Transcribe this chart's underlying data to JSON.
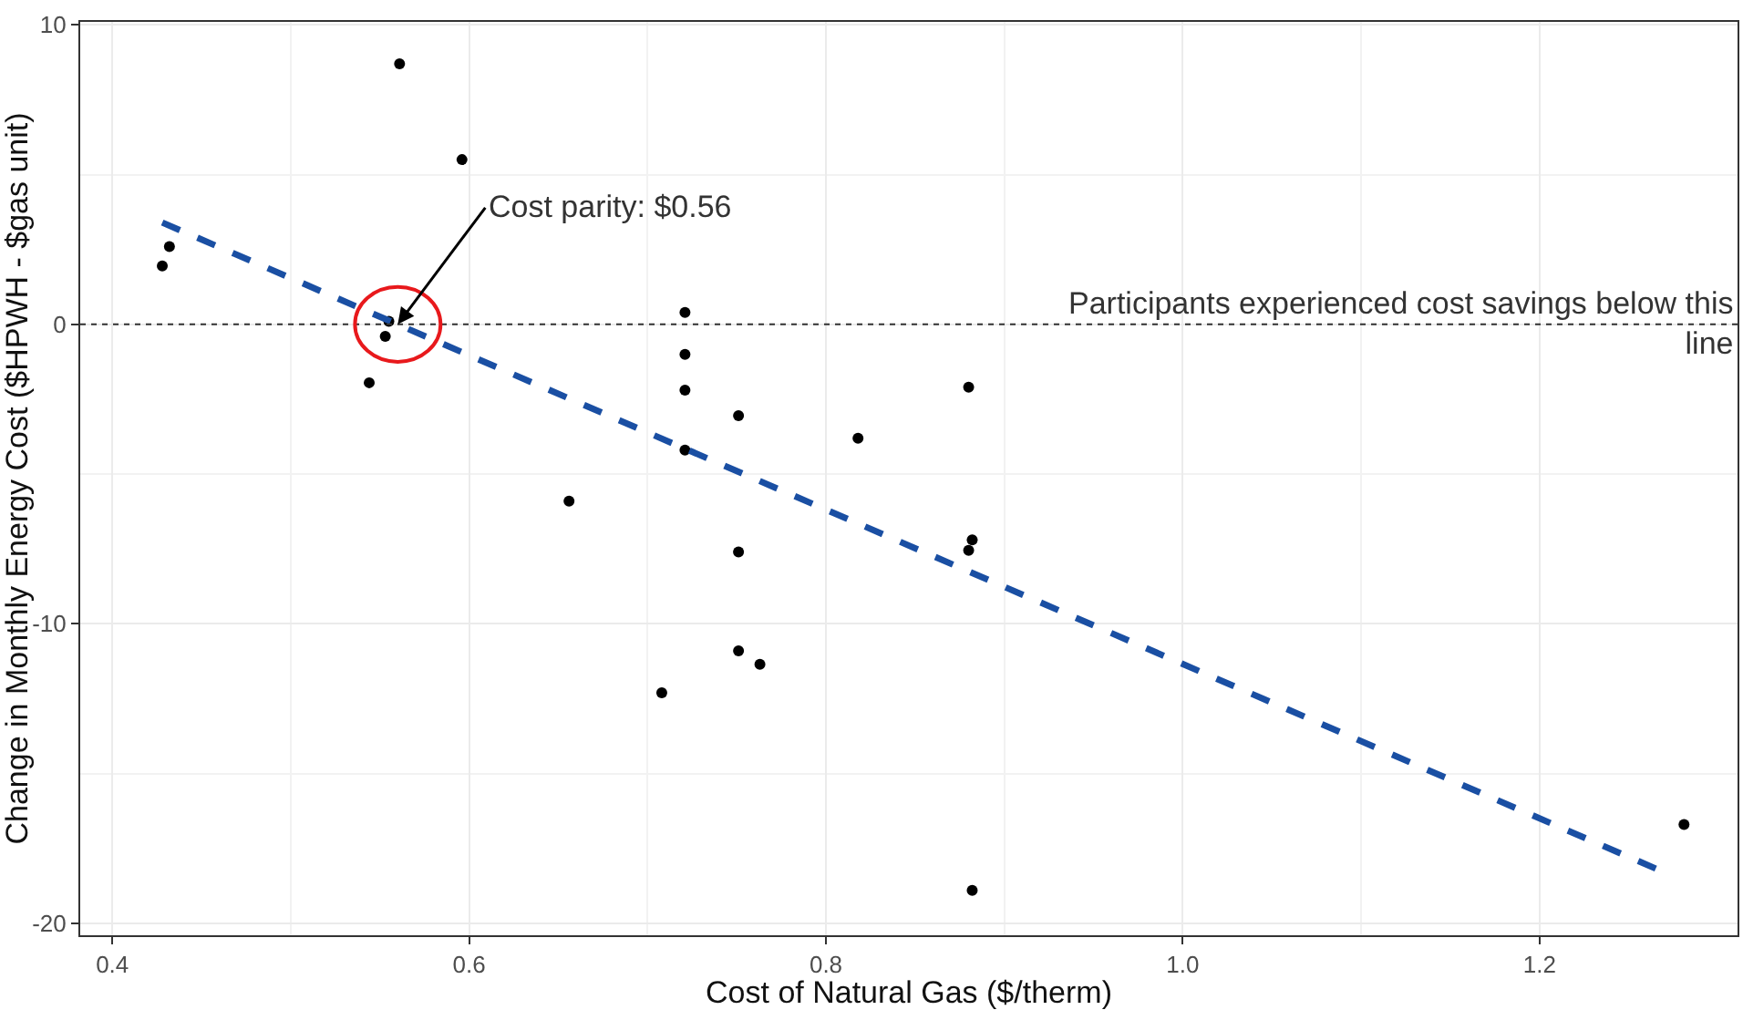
{
  "chart_data": {
    "type": "scatter",
    "xlabel": "Cost of Natural Gas ($/therm)",
    "ylabel": "Change in Monthly Energy Cost ($HPWH - $gas unit)",
    "xlim": [
      0.382,
      1.311
    ],
    "ylim": [
      -20.4,
      10.1
    ],
    "xticks": [
      0.4,
      0.6,
      0.8,
      {
        "value": 1,
        "label": "1.0"
      },
      1.2
    ],
    "yticks": [
      -20,
      -10,
      0,
      10
    ],
    "grid": true,
    "marker": "circle",
    "series": [
      {
        "color": "#000000",
        "x": [
          0.428,
          0.432,
          0.561,
          0.596,
          0.555,
          0.553,
          0.544,
          0.721,
          0.721,
          0.721,
          0.721,
          0.751,
          0.818,
          0.88,
          0.656,
          0.751,
          0.882,
          0.88,
          0.751,
          0.763,
          0.708,
          0.882,
          1.281
        ],
        "values": [
          1.95,
          2.6,
          8.7,
          5.5,
          0.1,
          -0.4,
          -1.95,
          0.4,
          -1.0,
          -2.2,
          -4.2,
          -3.05,
          -3.8,
          -2.1,
          -5.9,
          -7.6,
          -7.2,
          -7.55,
          -10.9,
          -11.35,
          -12.3,
          -18.9,
          -16.7
        ]
      },
      {
        "type": "line",
        "color": "#1a4fa3",
        "line_style": "dashed",
        "marker": "none",
        "x": [
          0.428,
          1.27
        ],
        "values": [
          3.4,
          -18.3
        ]
      }
    ],
    "ref_lines": [
      {
        "axis": "y",
        "value": 0,
        "label": "Participants experienced cost savings below this line",
        "line_style": "dotted",
        "color": "#333333"
      }
    ],
    "annotations": [
      {
        "text": "Cost parity: $0.56",
        "x": 0.56,
        "y": 0
      }
    ]
  }
}
